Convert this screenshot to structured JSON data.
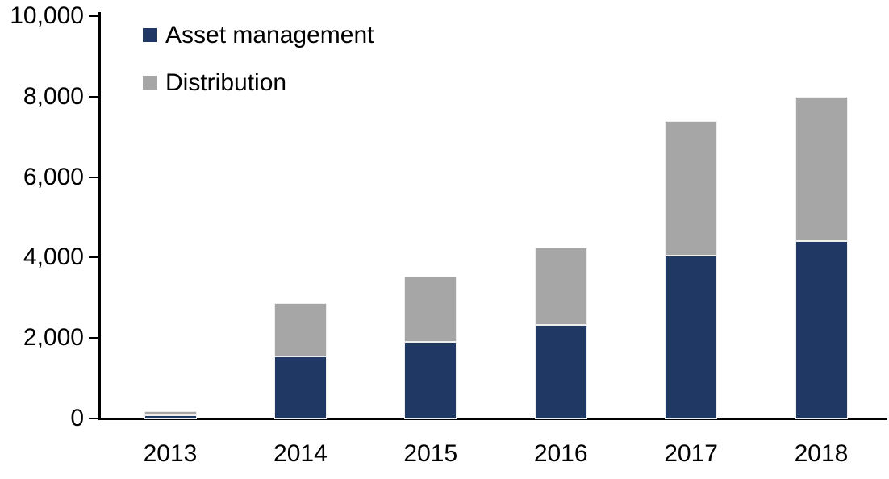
{
  "chart_data": {
    "type": "bar",
    "stacked": true,
    "title": "",
    "xlabel": "",
    "ylabel": "",
    "categories": [
      "2013",
      "2014",
      "2015",
      "2016",
      "2017",
      "2018"
    ],
    "series": [
      {
        "name": "Asset management",
        "color": "#1f3864",
        "values": [
          80,
          1550,
          1900,
          2320,
          4050,
          4400
        ]
      },
      {
        "name": "Distribution",
        "color": "#a6a6a6",
        "values": [
          110,
          1310,
          1620,
          1930,
          3350,
          3600
        ]
      }
    ],
    "ylim": [
      0,
      10000
    ],
    "yticks": [
      0,
      2000,
      4000,
      6000,
      8000,
      10000
    ],
    "ytick_labels": [
      "0",
      "2,000",
      "4,000",
      "6,000",
      "8,000",
      "10,000"
    ],
    "grid": false,
    "legend_position": "top-left",
    "axis_color": "#000000",
    "background_color": "#ffffff"
  }
}
